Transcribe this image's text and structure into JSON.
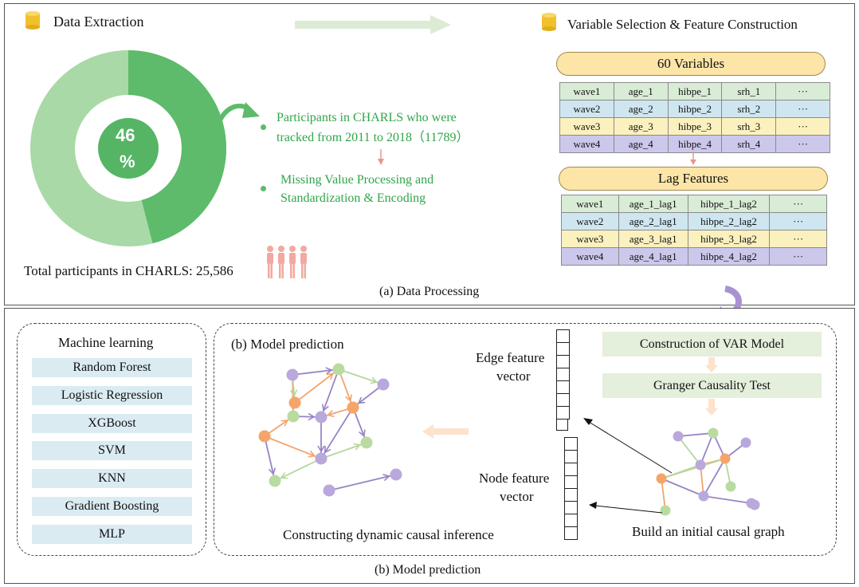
{
  "panel_a": {
    "caption": "(a) Data Processing",
    "data_extraction_title": "Data Extraction",
    "donut_percent": "46",
    "donut_percent_symbol": "%",
    "donut_fraction": 0.46,
    "step1_line1": "Participants in CHARLS who were",
    "step1_line2": "tracked from 2011 to 2018（11789）",
    "step2_line1": "Missing Value Processing and",
    "step2_line2": "Standardization & Encoding",
    "total_participants": "Total participants in CHARLS: 25,586",
    "feature_title": "Variable Selection & Feature Construction",
    "variables_label": "60 Variables",
    "variables_table": [
      [
        "wave1",
        "age_1",
        "hibpe_1",
        "srh_1",
        "···"
      ],
      [
        "wave2",
        "age_2",
        "hibpe_2",
        "srh_2",
        "···"
      ],
      [
        "wave3",
        "age_3",
        "hibpe_3",
        "srh_3",
        "···"
      ],
      [
        "wave4",
        "age_4",
        "hibpe_4",
        "srh_4",
        "···"
      ]
    ],
    "lag_label": "Lag Features",
    "lag_table": [
      [
        "wave1",
        "age_1_lag1",
        "hibpe_1_lag2",
        "···"
      ],
      [
        "wave2",
        "age_2_lag1",
        "hibpe_2_lag2",
        "···"
      ],
      [
        "wave3",
        "age_3_lag1",
        "hibpe_3_lag2",
        "···"
      ],
      [
        "wave4",
        "age_4_lag1",
        "hibpe_4_lag2",
        "···"
      ]
    ]
  },
  "panel_b": {
    "caption": "(b) Model prediction",
    "ml_title": "Machine learning",
    "ml_methods": [
      "Random Forest",
      "Logistic Regression",
      "XGBoost",
      "SVM",
      "KNN",
      "Gradient Boosting",
      "MLP"
    ],
    "inner_title": "(b) Model prediction",
    "dynamic_label": "Constructing dynamic causal inference",
    "edge_label_1": "Edge feature",
    "edge_label_2": "vector",
    "node_label_1": "Node feature",
    "node_label_2": "vector",
    "var_model": "Construction of VAR Model",
    "granger_test": "Granger Causality Test",
    "initial_graph_label": "Build an initial causal graph"
  },
  "colors": {
    "donut_dark": "#5dbb6b",
    "donut_light": "#a9d9a6",
    "center": "#55b565",
    "accent_green": "#2fa64a",
    "node_purple": "#b9a8dc",
    "node_green": "#b9dba0",
    "node_orange": "#f5a56a"
  }
}
